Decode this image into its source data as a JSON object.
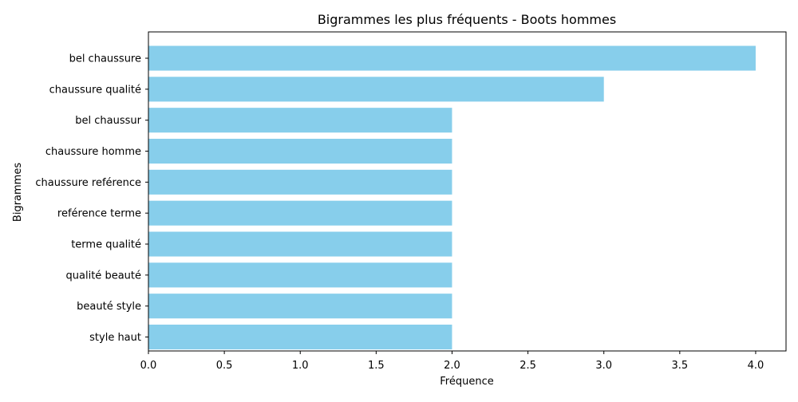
{
  "chart_data": {
    "type": "bar",
    "orientation": "horizontal",
    "title": "Bigrammes les plus fréquents - Boots hommes",
    "xlabel": "Fréquence",
    "ylabel": "Bigrammes",
    "xlim": [
      0,
      4.2
    ],
    "x_ticks": [
      "0.0",
      "0.5",
      "1.0",
      "1.5",
      "2.0",
      "2.5",
      "3.0",
      "3.5",
      "4.0"
    ],
    "categories": [
      "bel chaussure",
      "chaussure qualité",
      "bel chaussur",
      "chaussure homme",
      "chaussure reférence",
      "reférence terme",
      "terme qualité",
      "qualité beauté",
      "beauté style",
      "style haut"
    ],
    "values": [
      4,
      3,
      2,
      2,
      2,
      2,
      2,
      2,
      2,
      2
    ],
    "bar_color": "#87CEEB",
    "grid": false,
    "legend": "none"
  }
}
